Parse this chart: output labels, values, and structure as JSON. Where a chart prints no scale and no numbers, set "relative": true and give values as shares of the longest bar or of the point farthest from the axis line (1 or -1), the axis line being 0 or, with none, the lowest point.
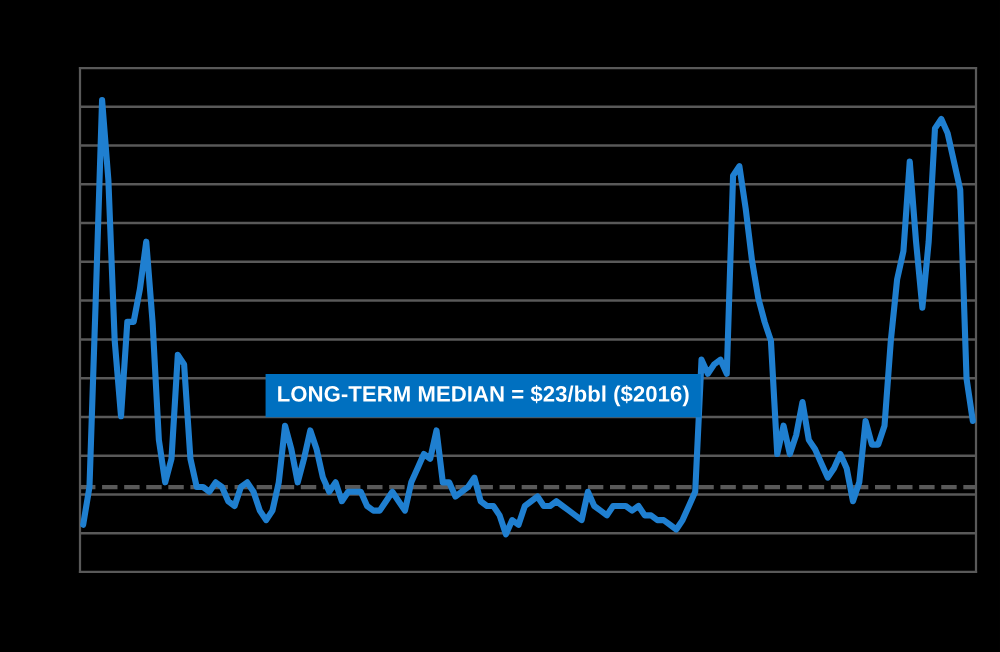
{
  "chart_data": {
    "type": "line",
    "relative": true,
    "grid": "y",
    "line_style": "solid",
    "marker": "none",
    "annotations": [
      "LONG-TERM MEDIAN = $23/bbl ($2016)"
    ],
    "categories": [
      null,
      null,
      null,
      null,
      null,
      null,
      null,
      null,
      null,
      null,
      null,
      null,
      null,
      null,
      null,
      null,
      null,
      null,
      null,
      null,
      null,
      null,
      null,
      null,
      null,
      null,
      null,
      null,
      null,
      null,
      null,
      null,
      null,
      null,
      null,
      null,
      null,
      null,
      null,
      null,
      null,
      null,
      null,
      null,
      null,
      null,
      null,
      null,
      null,
      null,
      null,
      null,
      null,
      null,
      null,
      null,
      null,
      null,
      null,
      null,
      null,
      null,
      null,
      null,
      null,
      null,
      null,
      null,
      null,
      null,
      null,
      null,
      null,
      null,
      null,
      null,
      null,
      null,
      null,
      null,
      null,
      null,
      null,
      null,
      null,
      null,
      null,
      null,
      null,
      null,
      null,
      null,
      null,
      null,
      null,
      null,
      null,
      null,
      null,
      null,
      null,
      null,
      null,
      null,
      null,
      null,
      null,
      null,
      null,
      null,
      null,
      null,
      null,
      null,
      null,
      null,
      null,
      null,
      null,
      null,
      null,
      null,
      null,
      null,
      null,
      null,
      null,
      null,
      null,
      null,
      null,
      null,
      null,
      null,
      null,
      null,
      null,
      null,
      null,
      null,
      null,
      null
    ],
    "series": [
      {
        "color": "#1f7fd0",
        "values": [
          0.1,
          0.18,
          0.58,
          1,
          0.83,
          0.49,
          0.33,
          0.53,
          0.53,
          0.6,
          0.7,
          0.53,
          0.28,
          0.19,
          0.24,
          0.46,
          0.44,
          0.24,
          0.18,
          0.18,
          0.17,
          0.19,
          0.18,
          0.15,
          0.14,
          0.18,
          0.19,
          0.17,
          0.13,
          0.11,
          0.13,
          0.19,
          0.31,
          0.26,
          0.19,
          0.24,
          0.3,
          0.26,
          0.2,
          0.17,
          0.19,
          0.15,
          0.17,
          0.17,
          0.17,
          0.14,
          0.13,
          0.13,
          0.15,
          0.17,
          0.15,
          0.13,
          0.19,
          0.22,
          0.25,
          0.24,
          0.3,
          0.19,
          0.19,
          0.16,
          0.17,
          0.18,
          0.2,
          0.15,
          0.14,
          0.14,
          0.12,
          0.08,
          0.11,
          0.1,
          0.14,
          0.15,
          0.16,
          0.14,
          0.14,
          0.15,
          0.14,
          0.13,
          0.12,
          0.11,
          0.17,
          0.14,
          0.13,
          0.12,
          0.14,
          0.14,
          0.14,
          0.13,
          0.14,
          0.12,
          0.12,
          0.11,
          0.11,
          0.1,
          0.09,
          0.11,
          0.14,
          0.17,
          0.45,
          0.42,
          0.44,
          0.45,
          0.42,
          0.84,
          0.86,
          0.77,
          0.66,
          0.58,
          0.53,
          0.49,
          0.25,
          0.31,
          0.25,
          0.29,
          0.36,
          0.28,
          0.26,
          0.23,
          0.2,
          0.22,
          0.25,
          0.22,
          0.15,
          0.19,
          0.32,
          0.27,
          0.27,
          0.31,
          0.49,
          0.62,
          0.68,
          0.87,
          0.7,
          0.56,
          0.7,
          0.94,
          0.96,
          0.93,
          0.87,
          0.81,
          0.41,
          0.32
        ]
      }
    ],
    "ref_lines": [
      {
        "axis": "y",
        "value": 0.18,
        "color": "#595959",
        "line_style": "dashed"
      }
    ]
  }
}
